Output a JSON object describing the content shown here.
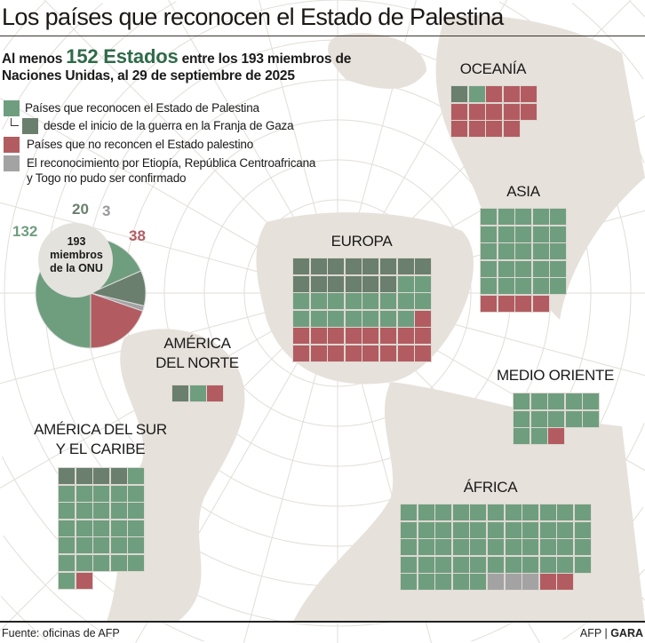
{
  "title": "Los países que reconocen el Estado de Palestina",
  "subtitle": {
    "prefix": "Al menos",
    "highlight": "152 Estados",
    "rest_line1": "entre los 193 miembros de",
    "line2": "Naciones Unidas, al 29 de septiembre de 2025"
  },
  "colors": {
    "recognize": "#6f9e7f",
    "recognize_since_war": "#6a7f6d",
    "not_recognize": "#b25c61",
    "unconfirmed": "#a3a3a3",
    "land": "#e6e1da",
    "grid": "#dedad4"
  },
  "legend": [
    {
      "status": "recognize",
      "label": "Países que reconocen el Estado de Palestina"
    },
    {
      "status": "recognize_since_war",
      "label": "desde el inicio de la guerra en la Franja de Gaza"
    },
    {
      "status": "not_recognize",
      "label": "Países que no reconcen el Estado palestino"
    },
    {
      "status": "unconfirmed",
      "label": "El reconocimiento por Etiopía, República Centroafricana",
      "label2": "y Togo no pudo ser confirmado"
    }
  ],
  "chart_data": [
    {
      "type": "pie",
      "center_label": [
        "193",
        "miembros",
        "de la ONU"
      ],
      "slices": [
        {
          "status": "recognize",
          "value": 132,
          "label": "132"
        },
        {
          "status": "recognize_since_war",
          "value": 20,
          "label": "20"
        },
        {
          "status": "unconfirmed",
          "value": 3,
          "label": "3"
        },
        {
          "status": "not_recognize",
          "value": 38,
          "label": "38"
        }
      ]
    },
    {
      "type": "waffle",
      "regions": [
        {
          "id": "oceania",
          "title": [
            "OCEANÍA"
          ],
          "columns": 5,
          "cells": [
            {
              "status": "recognize_since_war",
              "count": 1
            },
            {
              "status": "recognize",
              "count": 1
            },
            {
              "status": "not_recognize",
              "count": 12
            }
          ]
        },
        {
          "id": "asia",
          "title": [
            "ASIA"
          ],
          "columns": 5,
          "cells": [
            {
              "status": "recognize",
              "count": 25
            },
            {
              "status": "not_recognize",
              "count": 4
            }
          ]
        },
        {
          "id": "europa",
          "title": [
            "EUROPA"
          ],
          "columns": 8,
          "cells": [
            {
              "status": "recognize_since_war",
              "count": 14
            },
            {
              "status": "recognize",
              "count": 17
            },
            {
              "status": "not_recognize",
              "count": 17
            }
          ]
        },
        {
          "id": "america-norte",
          "title": [
            "AMÉRICA",
            "DEL NORTE"
          ],
          "columns": 3,
          "cells": [
            {
              "status": "recognize_since_war",
              "count": 1
            },
            {
              "status": "recognize",
              "count": 1
            },
            {
              "status": "not_recognize",
              "count": 1
            }
          ]
        },
        {
          "id": "medio-oriente",
          "title": [
            "MEDIO ORIENTE"
          ],
          "columns": 5,
          "cells": [
            {
              "status": "recognize",
              "count": 12
            },
            {
              "status": "not_recognize",
              "count": 1
            }
          ]
        },
        {
          "id": "america-sur",
          "title": [
            "AMÉRICA DEL SUR",
            "Y EL CARIBE"
          ],
          "columns": 5,
          "cells": [
            {
              "status": "recognize_since_war",
              "count": 4
            },
            {
              "status": "recognize",
              "count": 27
            },
            {
              "status": "not_recognize",
              "count": 1
            }
          ]
        },
        {
          "id": "africa",
          "title": [
            "ÁFRICA"
          ],
          "columns": 11,
          "cells": [
            {
              "status": "recognize",
              "count": 49
            },
            {
              "status": "unconfirmed",
              "count": 3
            },
            {
              "status": "not_recognize",
              "count": 2
            }
          ]
        }
      ]
    }
  ],
  "footer": {
    "source_label": "Fuente:",
    "source": "oficinas de AFP",
    "credit_agency": "AFP",
    "credit_paper": "GARA"
  }
}
